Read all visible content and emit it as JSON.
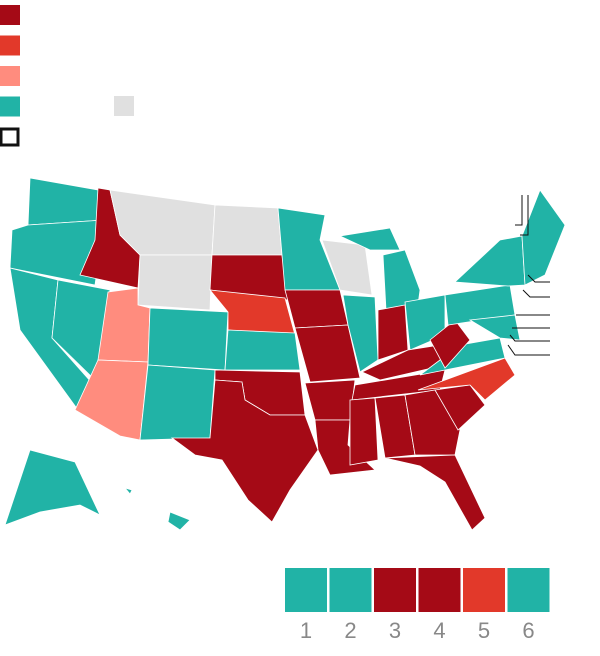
{
  "legend": {
    "colors": [
      "#a50a16",
      "#e2392a",
      "#ff8c7e",
      "#21b3a6"
    ],
    "no_data_color": "#e0e0e0"
  },
  "strip": [
    {
      "label": 1,
      "color": "#21b3a6"
    },
    {
      "label": 2,
      "color": "#21b3a6"
    },
    {
      "label": 3,
      "color": "#a50a16"
    },
    {
      "label": 4,
      "color": "#a50a16"
    },
    {
      "label": 5,
      "color": "#e2392a"
    },
    {
      "label": 6,
      "color": "#21b3a6"
    }
  ]
}
